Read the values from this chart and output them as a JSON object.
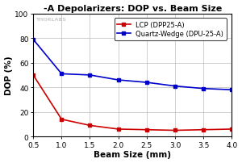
{
  "title": "-A Depolarizers: DOP vs. Beam Size",
  "xlabel": "Beam Size (mm)",
  "ylabel": "DOP (%)",
  "xlim": [
    0.5,
    4.0
  ],
  "ylim": [
    0,
    100
  ],
  "xticks": [
    0.5,
    1.0,
    1.5,
    2.0,
    2.5,
    3.0,
    3.5,
    4.0
  ],
  "yticks": [
    0,
    20,
    40,
    60,
    80,
    100
  ],
  "lcp_x": [
    0.5,
    1.0,
    1.5,
    2.0,
    2.5,
    3.0,
    3.5,
    4.0
  ],
  "lcp_y": [
    50,
    14,
    9,
    6,
    5.5,
    5,
    5.5,
    6
  ],
  "qw_x": [
    0.5,
    1.0,
    1.5,
    2.0,
    2.5,
    3.0,
    3.5,
    4.0
  ],
  "qw_y": [
    79,
    51,
    50,
    46,
    44,
    41,
    39,
    38
  ],
  "lcp_color": "#cc0000",
  "qw_color": "#0000cc",
  "lcp_label": "LCP (DPP25-A)",
  "qw_label": "Quartz-Wedge (DPU-25-A)",
  "bg_color": "#ffffff",
  "grid_color": "#bbbbbb",
  "watermark": "THORLABS",
  "title_color": "#000000",
  "axis_label_color": "#000000"
}
